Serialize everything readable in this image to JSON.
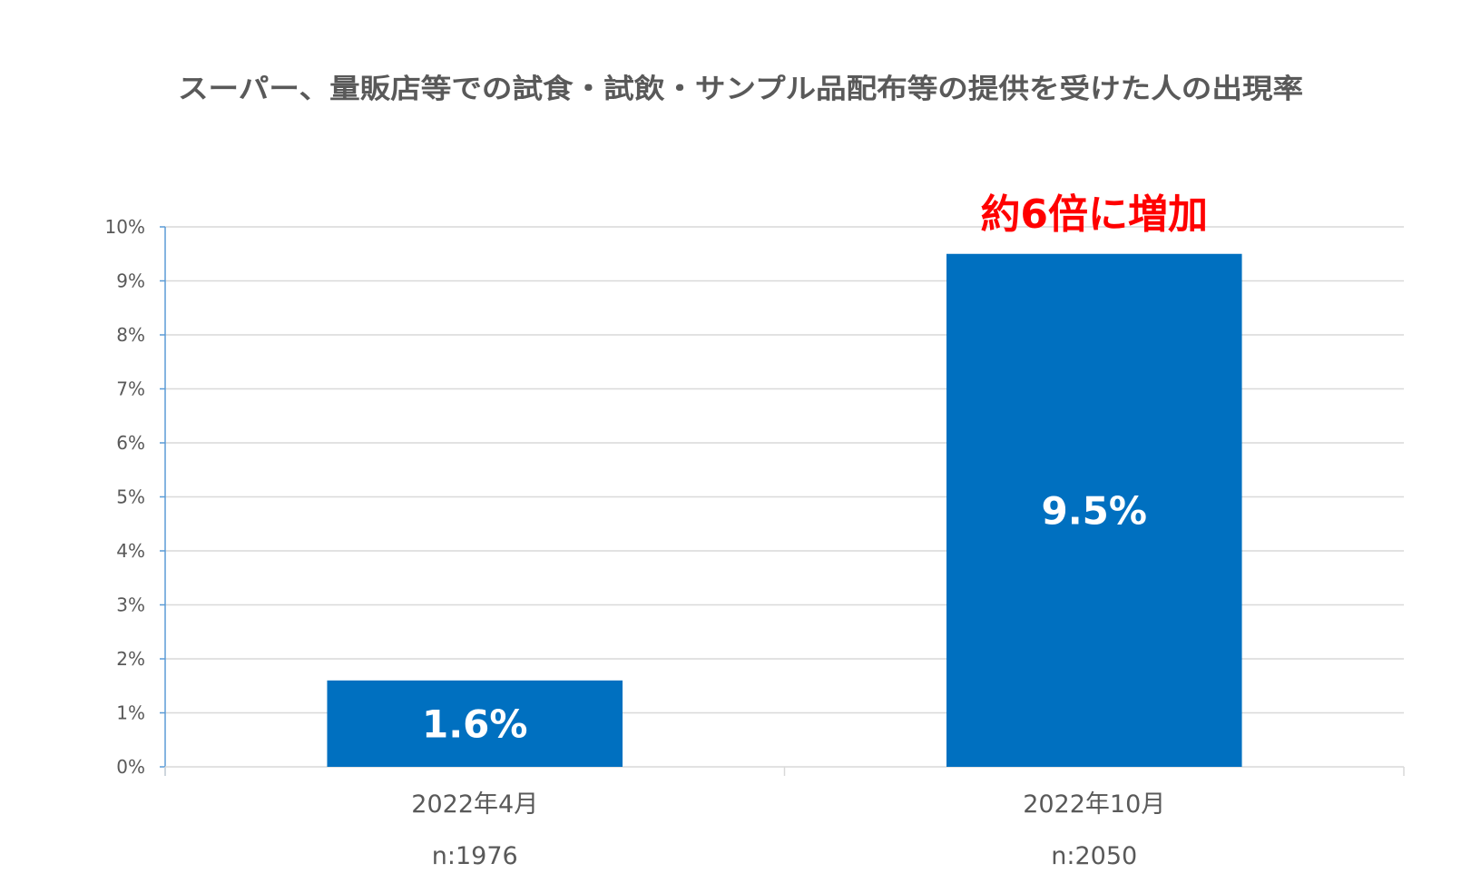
{
  "chart_data": {
    "type": "bar",
    "title": "スーパー、量販店等での試食・試飲・サンプル品配布等の提供を受けた人の出現率",
    "categories": [
      "2022年4月",
      "2022年10月"
    ],
    "sample_sizes": [
      "n:1976",
      "n:2050"
    ],
    "values": [
      1.6,
      9.5
    ],
    "value_labels": [
      "1.6%",
      "9.5%"
    ],
    "unit": "%",
    "ylim": [
      0,
      10
    ],
    "yticks": [
      "0%",
      "1%",
      "2%",
      "3%",
      "4%",
      "5%",
      "6%",
      "7%",
      "8%",
      "9%",
      "10%"
    ],
    "grid": true,
    "legend": "none",
    "annotation": {
      "text": "約6倍に増加",
      "target_category": "2022年10月",
      "color": "#ff0000"
    },
    "colors": {
      "bar": "#0070c0",
      "grid": "#d9d9d9",
      "axis": "#5b9bd5",
      "text": "#595959"
    }
  }
}
